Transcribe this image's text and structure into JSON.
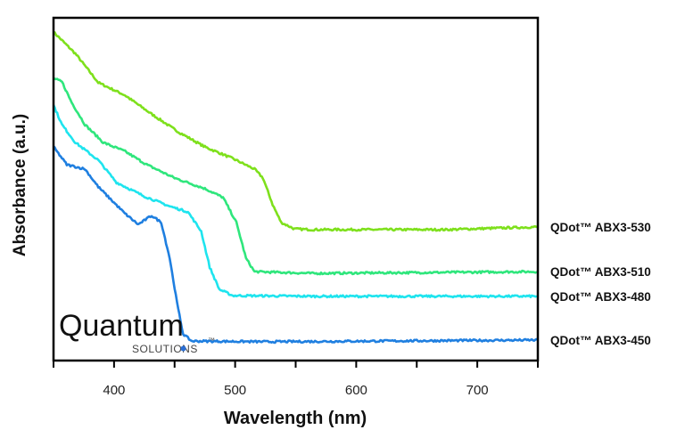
{
  "chart_data": {
    "type": "line",
    "title": "",
    "xlabel": "Wavelength (nm)",
    "ylabel": "Absorbance (a.u.)",
    "xlim": [
      350,
      750
    ],
    "ylim": [
      0,
      1
    ],
    "x_ticks": [
      400,
      500,
      600,
      700
    ],
    "y_ticks": [],
    "grid": false,
    "legend": "right, inline series labels",
    "series": [
      {
        "name": "QDot™ ABX3-530",
        "color": "#7ee01c",
        "points": [
          [
            350,
            0.961
          ],
          [
            368,
            0.898
          ],
          [
            387,
            0.813
          ],
          [
            409,
            0.776
          ],
          [
            431,
            0.721
          ],
          [
            453,
            0.669
          ],
          [
            475,
            0.625
          ],
          [
            498,
            0.591
          ],
          [
            516,
            0.56
          ],
          [
            523,
            0.534
          ],
          [
            531,
            0.456
          ],
          [
            538,
            0.404
          ],
          [
            549,
            0.385
          ],
          [
            564,
            0.383
          ],
          [
            601,
            0.383
          ],
          [
            675,
            0.383
          ],
          [
            750,
            0.391
          ]
        ]
      },
      {
        "name": "QDot™ ABX3-510",
        "color": "#2fe67c",
        "points": [
          [
            350,
            0.826
          ],
          [
            357,
            0.815
          ],
          [
            365,
            0.755
          ],
          [
            376,
            0.69
          ],
          [
            391,
            0.638
          ],
          [
            409,
            0.612
          ],
          [
            427,
            0.573
          ],
          [
            450,
            0.534
          ],
          [
            475,
            0.503
          ],
          [
            490,
            0.477
          ],
          [
            501,
            0.404
          ],
          [
            509,
            0.299
          ],
          [
            516,
            0.26
          ],
          [
            564,
            0.255
          ],
          [
            750,
            0.26
          ]
        ]
      },
      {
        "name": "QDot™ ABX3-480",
        "color": "#1ee4ee",
        "points": [
          [
            350,
            0.747
          ],
          [
            357,
            0.69
          ],
          [
            368,
            0.638
          ],
          [
            387,
            0.586
          ],
          [
            402,
            0.521
          ],
          [
            424,
            0.482
          ],
          [
            446,
            0.451
          ],
          [
            461,
            0.435
          ],
          [
            472,
            0.378
          ],
          [
            479,
            0.273
          ],
          [
            487,
            0.208
          ],
          [
            498,
            0.19
          ],
          [
            564,
            0.188
          ],
          [
            750,
            0.188
          ]
        ]
      },
      {
        "name": "QDot™ ABX3-450",
        "color": "#1f7fe0",
        "points": [
          [
            350,
            0.625
          ],
          [
            361,
            0.573
          ],
          [
            376,
            0.56
          ],
          [
            387,
            0.508
          ],
          [
            398,
            0.469
          ],
          [
            409,
            0.43
          ],
          [
            420,
            0.398
          ],
          [
            431,
            0.424
          ],
          [
            439,
            0.404
          ],
          [
            446,
            0.299
          ],
          [
            452,
            0.169
          ],
          [
            457,
            0.078
          ],
          [
            464,
            0.057
          ],
          [
            527,
            0.055
          ],
          [
            750,
            0.06
          ]
        ]
      }
    ]
  },
  "logo": {
    "word": "Quantum",
    "sub": "SOLUTIONS",
    "tm": "™"
  }
}
